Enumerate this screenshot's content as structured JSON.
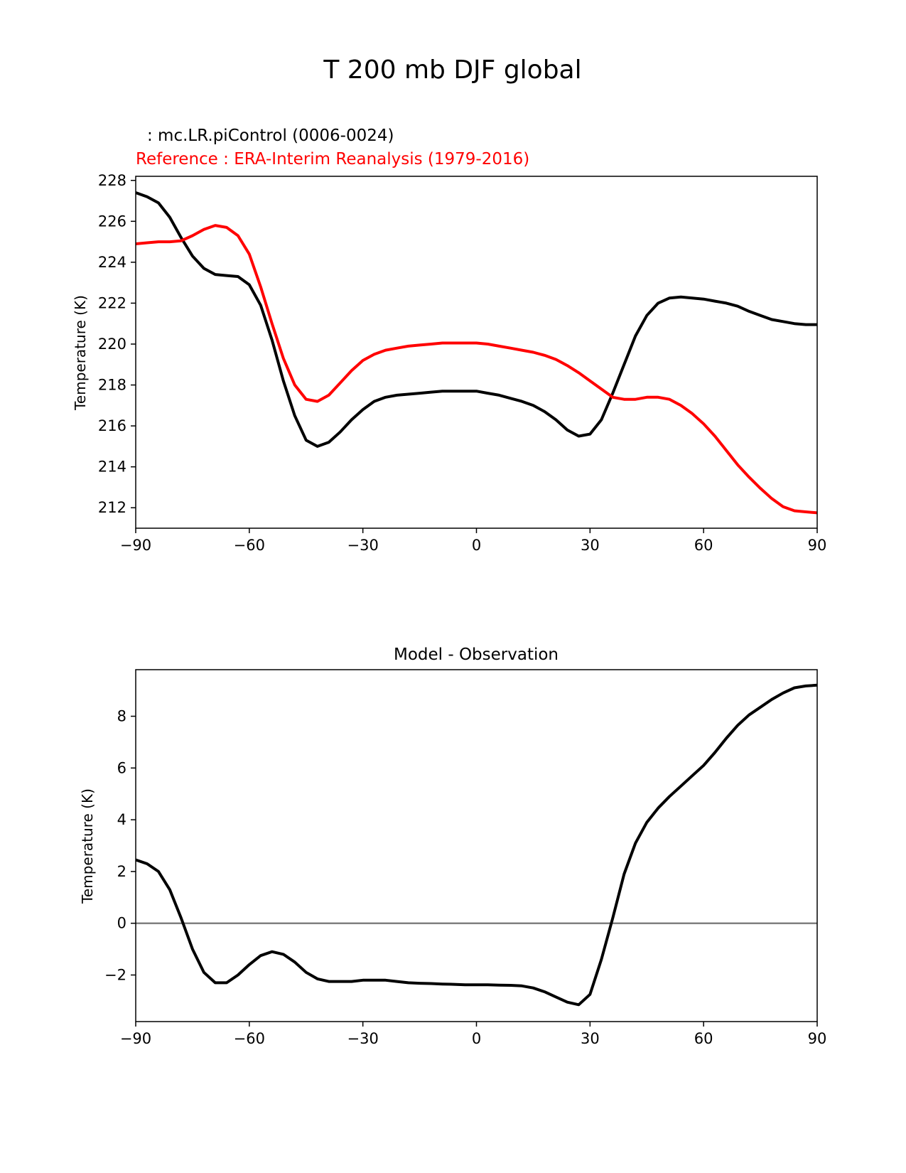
{
  "figure_title": "T 200 mb DJF global",
  "colors": {
    "model": "#000000",
    "reference": "#ff0000",
    "zero_line": "#808080",
    "axes": "#000000"
  },
  "chart_data": [
    {
      "type": "line",
      "model_label": ": mc.LR.piControl (0006-0024)",
      "reference_label": "Reference : ERA-Interim Reanalysis (1979-2016)",
      "xlabel": "",
      "ylabel": "Temperature (K)",
      "xlim": [
        -90,
        90
      ],
      "ylim": [
        211,
        228.2
      ],
      "xticks": [
        -90,
        -60,
        -30,
        0,
        30,
        60,
        90
      ],
      "xtick_labels": [
        "−90",
        "−60",
        "−30",
        "0",
        "30",
        "60",
        "90"
      ],
      "yticks": [
        212,
        214,
        216,
        218,
        220,
        222,
        224,
        226,
        228
      ],
      "ytick_labels": [
        "212",
        "214",
        "216",
        "218",
        "220",
        "222",
        "224",
        "226",
        "228"
      ],
      "series": [
        {
          "name": "mc.LR.piControl (0006-0024)",
          "color": "#000000",
          "x": [
            -90,
            -87,
            -84,
            -81,
            -78,
            -75,
            -72,
            -69,
            -66,
            -63,
            -60,
            -57,
            -54,
            -51,
            -48,
            -45,
            -42,
            -39,
            -36,
            -33,
            -30,
            -27,
            -24,
            -21,
            -18,
            -15,
            -12,
            -9,
            -6,
            -3,
            0,
            3,
            6,
            9,
            12,
            15,
            18,
            21,
            24,
            27,
            30,
            33,
            36,
            39,
            42,
            45,
            48,
            51,
            54,
            57,
            60,
            63,
            66,
            69,
            72,
            75,
            78,
            81,
            84,
            87,
            90
          ],
          "y": [
            227.4,
            227.2,
            226.9,
            226.2,
            225.2,
            224.3,
            223.7,
            223.4,
            223.35,
            223.3,
            222.9,
            221.9,
            220.2,
            218.2,
            216.5,
            215.3,
            215.0,
            215.2,
            215.7,
            216.3,
            216.8,
            217.2,
            217.4,
            217.5,
            217.55,
            217.6,
            217.65,
            217.7,
            217.7,
            217.7,
            217.7,
            217.6,
            217.5,
            217.35,
            217.2,
            217.0,
            216.7,
            216.3,
            215.8,
            215.5,
            215.6,
            216.3,
            217.6,
            219.0,
            220.4,
            221.4,
            222.0,
            222.25,
            222.3,
            222.25,
            222.2,
            222.1,
            222.0,
            221.85,
            221.6,
            221.4,
            221.2,
            221.1,
            221.0,
            220.95,
            220.95
          ]
        },
        {
          "name": "ERA-Interim Reanalysis (1979-2016)",
          "color": "#ff0000",
          "x": [
            -90,
            -87,
            -84,
            -81,
            -78,
            -75,
            -72,
            -69,
            -66,
            -63,
            -60,
            -57,
            -54,
            -51,
            -48,
            -45,
            -42,
            -39,
            -36,
            -33,
            -30,
            -27,
            -24,
            -21,
            -18,
            -15,
            -12,
            -9,
            -6,
            -3,
            0,
            3,
            6,
            9,
            12,
            15,
            18,
            21,
            24,
            27,
            30,
            33,
            36,
            39,
            42,
            45,
            48,
            51,
            54,
            57,
            60,
            63,
            66,
            69,
            72,
            75,
            78,
            81,
            84,
            87,
            90
          ],
          "y": [
            224.9,
            224.95,
            225.0,
            225.0,
            225.05,
            225.3,
            225.6,
            225.8,
            225.7,
            225.3,
            224.4,
            222.8,
            221.0,
            219.3,
            218.0,
            217.3,
            217.2,
            217.5,
            218.1,
            218.7,
            219.2,
            219.5,
            219.7,
            219.8,
            219.9,
            219.95,
            220.0,
            220.05,
            220.05,
            220.05,
            220.05,
            220.0,
            219.9,
            219.8,
            219.7,
            219.6,
            219.45,
            219.25,
            218.95,
            218.6,
            218.2,
            217.8,
            217.4,
            217.3,
            217.3,
            217.4,
            217.4,
            217.3,
            217.0,
            216.6,
            216.1,
            215.5,
            214.8,
            214.1,
            213.5,
            212.95,
            212.45,
            212.05,
            211.85,
            211.8,
            211.75
          ]
        }
      ]
    },
    {
      "type": "line",
      "title": "Model - Observation",
      "xlabel": "",
      "ylabel": "Temperature (K)",
      "xlim": [
        -90,
        90
      ],
      "ylim": [
        -3.8,
        9.8
      ],
      "xticks": [
        -90,
        -60,
        -30,
        0,
        30,
        60,
        90
      ],
      "xtick_labels": [
        "−90",
        "−60",
        "−30",
        "0",
        "30",
        "60",
        "90"
      ],
      "yticks": [
        -2,
        0,
        2,
        4,
        6,
        8
      ],
      "ytick_labels": [
        "−2",
        "0",
        "2",
        "4",
        "6",
        "8"
      ],
      "zero_line": 0,
      "series": [
        {
          "name": "Model - Observation",
          "color": "#000000",
          "x": [
            -90,
            -87,
            -84,
            -81,
            -78,
            -75,
            -72,
            -69,
            -66,
            -63,
            -60,
            -57,
            -54,
            -51,
            -48,
            -45,
            -42,
            -39,
            -36,
            -33,
            -30,
            -27,
            -24,
            -21,
            -18,
            -15,
            -12,
            -9,
            -6,
            -3,
            0,
            3,
            6,
            9,
            12,
            15,
            18,
            21,
            24,
            27,
            30,
            33,
            36,
            39,
            42,
            45,
            48,
            51,
            54,
            57,
            60,
            63,
            66,
            69,
            72,
            75,
            78,
            81,
            84,
            87,
            90
          ],
          "y": [
            2.45,
            2.3,
            2.0,
            1.3,
            0.2,
            -1.0,
            -1.9,
            -2.3,
            -2.3,
            -2.0,
            -1.6,
            -1.25,
            -1.1,
            -1.2,
            -1.5,
            -1.9,
            -2.15,
            -2.25,
            -2.25,
            -2.25,
            -2.2,
            -2.2,
            -2.2,
            -2.25,
            -2.3,
            -2.32,
            -2.33,
            -2.35,
            -2.36,
            -2.38,
            -2.38,
            -2.38,
            -2.39,
            -2.4,
            -2.42,
            -2.5,
            -2.65,
            -2.85,
            -3.05,
            -3.15,
            -2.75,
            -1.4,
            0.2,
            1.9,
            3.1,
            3.9,
            4.45,
            4.9,
            5.3,
            5.7,
            6.1,
            6.6,
            7.15,
            7.65,
            8.05,
            8.35,
            8.65,
            8.9,
            9.1,
            9.17,
            9.2
          ]
        }
      ]
    }
  ]
}
